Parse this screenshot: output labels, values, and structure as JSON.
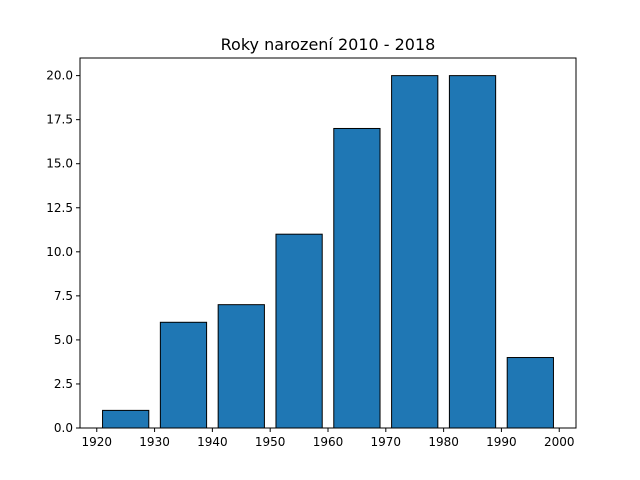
{
  "chart_data": {
    "type": "bar",
    "title": "Roky narození 2010 - 2018",
    "xlabel": "",
    "ylabel": "",
    "bins": [
      {
        "start": 1920,
        "end": 1930,
        "value": 1
      },
      {
        "start": 1930,
        "end": 1940,
        "value": 6
      },
      {
        "start": 1940,
        "end": 1950,
        "value": 7
      },
      {
        "start": 1950,
        "end": 1960,
        "value": 11
      },
      {
        "start": 1960,
        "end": 1970,
        "value": 17
      },
      {
        "start": 1970,
        "end": 1980,
        "value": 20
      },
      {
        "start": 1980,
        "end": 1990,
        "value": 20
      },
      {
        "start": 1990,
        "end": 2000,
        "value": 4
      }
    ],
    "xlim": [
      1917.1,
      2002.9
    ],
    "ylim": [
      0,
      21
    ],
    "xticks": [
      1920,
      1930,
      1940,
      1950,
      1960,
      1970,
      1980,
      1990,
      2000
    ],
    "yticks": [
      "0.0",
      "2.5",
      "5.0",
      "7.5",
      "10.0",
      "12.5",
      "15.0",
      "17.5",
      "20.0"
    ],
    "bar_color": "#1f77b4",
    "edge_color": "#000000",
    "grid": false,
    "legend": "none"
  }
}
